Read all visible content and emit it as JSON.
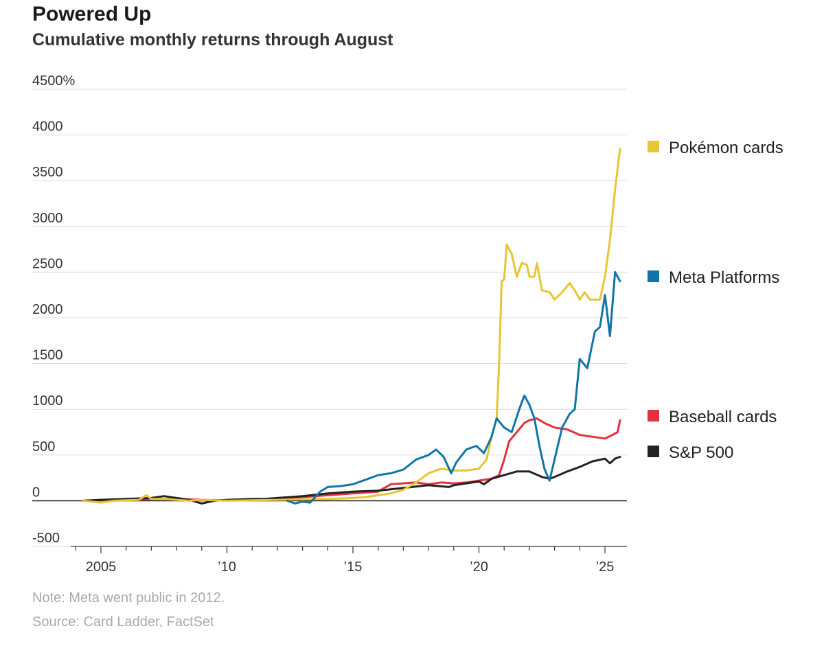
{
  "header": {
    "title": "Powered Up",
    "subtitle": "Cumulative monthly returns through August"
  },
  "footer": {
    "note": "Note: Meta went public in 2012.",
    "source": "Source: Card Ladder, FactSet"
  },
  "chart_data": {
    "type": "line",
    "title": "Powered Up",
    "subtitle": "Cumulative monthly returns through August",
    "xlabel": "",
    "ylabel": "",
    "xlim": [
      2004.0,
      2025.9
    ],
    "ylim": [
      -500,
      4500
    ],
    "y_ticks": [
      {
        "value": 4500,
        "label": "4500%"
      },
      {
        "value": 4000,
        "label": "4000"
      },
      {
        "value": 3500,
        "label": "3500"
      },
      {
        "value": 3000,
        "label": "3000"
      },
      {
        "value": 2500,
        "label": "2500"
      },
      {
        "value": 2000,
        "label": "2000"
      },
      {
        "value": 1500,
        "label": "1500"
      },
      {
        "value": 1000,
        "label": "1000"
      },
      {
        "value": 500,
        "label": "500"
      },
      {
        "value": 0,
        "label": "0"
      },
      {
        "value": -500,
        "label": "-500"
      }
    ],
    "x_ticks": [
      {
        "value": 2005,
        "label": "2005"
      },
      {
        "value": 2010,
        "label": "'10"
      },
      {
        "value": 2015,
        "label": "'15"
      },
      {
        "value": 2020,
        "label": "'20"
      },
      {
        "value": 2025,
        "label": "'25"
      }
    ],
    "grid": "horizontal",
    "legend": "right, at line ends",
    "series": [
      {
        "name": "Pokémon cards",
        "color": "#e8c534",
        "points": [
          [
            2004.3,
            0
          ],
          [
            2005.0,
            -20
          ],
          [
            2005.5,
            0
          ],
          [
            2006.5,
            10
          ],
          [
            2006.8,
            60
          ],
          [
            2007.0,
            20
          ],
          [
            2007.5,
            20
          ],
          [
            2008.0,
            10
          ],
          [
            2008.5,
            0
          ],
          [
            2009.0,
            10
          ],
          [
            2009.5,
            5
          ],
          [
            2010.0,
            0
          ],
          [
            2011.0,
            5
          ],
          [
            2012.0,
            10
          ],
          [
            2013.0,
            15
          ],
          [
            2014.0,
            20
          ],
          [
            2015.0,
            30
          ],
          [
            2015.5,
            40
          ],
          [
            2016.0,
            60
          ],
          [
            2016.5,
            80
          ],
          [
            2017.0,
            120
          ],
          [
            2017.5,
            200
          ],
          [
            2018.0,
            300
          ],
          [
            2018.5,
            350
          ],
          [
            2019.0,
            330
          ],
          [
            2019.5,
            330
          ],
          [
            2020.0,
            350
          ],
          [
            2020.3,
            450
          ],
          [
            2020.5,
            700
          ],
          [
            2020.7,
            900
          ],
          [
            2020.8,
            1500
          ],
          [
            2020.9,
            2400
          ],
          [
            2021.0,
            2420
          ],
          [
            2021.1,
            2800
          ],
          [
            2021.3,
            2700
          ],
          [
            2021.5,
            2450
          ],
          [
            2021.7,
            2600
          ],
          [
            2021.9,
            2580
          ],
          [
            2022.0,
            2450
          ],
          [
            2022.2,
            2450
          ],
          [
            2022.3,
            2600
          ],
          [
            2022.5,
            2300
          ],
          [
            2022.8,
            2280
          ],
          [
            2023.0,
            2200
          ],
          [
            2023.3,
            2280
          ],
          [
            2023.6,
            2380
          ],
          [
            2023.8,
            2300
          ],
          [
            2024.0,
            2200
          ],
          [
            2024.2,
            2280
          ],
          [
            2024.4,
            2200
          ],
          [
            2024.8,
            2200
          ],
          [
            2025.0,
            2450
          ],
          [
            2025.2,
            2850
          ],
          [
            2025.4,
            3400
          ],
          [
            2025.6,
            3850
          ]
        ]
      },
      {
        "name": "Meta Platforms",
        "color": "#0f75a8",
        "points": [
          [
            2012.4,
            0
          ],
          [
            2012.7,
            -30
          ],
          [
            2013.0,
            -10
          ],
          [
            2013.3,
            -20
          ],
          [
            2013.7,
            100
          ],
          [
            2014.0,
            150
          ],
          [
            2014.5,
            160
          ],
          [
            2015.0,
            180
          ],
          [
            2015.5,
            230
          ],
          [
            2016.0,
            280
          ],
          [
            2016.5,
            300
          ],
          [
            2017.0,
            340
          ],
          [
            2017.5,
            450
          ],
          [
            2018.0,
            500
          ],
          [
            2018.3,
            560
          ],
          [
            2018.6,
            480
          ],
          [
            2018.9,
            300
          ],
          [
            2019.1,
            420
          ],
          [
            2019.5,
            560
          ],
          [
            2019.9,
            600
          ],
          [
            2020.2,
            520
          ],
          [
            2020.5,
            700
          ],
          [
            2020.7,
            900
          ],
          [
            2021.0,
            800
          ],
          [
            2021.3,
            750
          ],
          [
            2021.6,
            1000
          ],
          [
            2021.8,
            1150
          ],
          [
            2022.0,
            1050
          ],
          [
            2022.2,
            900
          ],
          [
            2022.4,
            600
          ],
          [
            2022.6,
            350
          ],
          [
            2022.8,
            220
          ],
          [
            2023.0,
            450
          ],
          [
            2023.3,
            800
          ],
          [
            2023.6,
            950
          ],
          [
            2023.8,
            1000
          ],
          [
            2024.0,
            1550
          ],
          [
            2024.3,
            1450
          ],
          [
            2024.6,
            1850
          ],
          [
            2024.8,
            1900
          ],
          [
            2025.0,
            2250
          ],
          [
            2025.2,
            1800
          ],
          [
            2025.4,
            2500
          ],
          [
            2025.6,
            2400
          ]
        ]
      },
      {
        "name": "Baseball cards",
        "color": "#e2323c",
        "points": [
          [
            2004.3,
            0
          ],
          [
            2005.0,
            10
          ],
          [
            2006.0,
            5
          ],
          [
            2007.0,
            20
          ],
          [
            2008.0,
            20
          ],
          [
            2009.0,
            10
          ],
          [
            2010.0,
            5
          ],
          [
            2011.0,
            10
          ],
          [
            2012.0,
            20
          ],
          [
            2013.0,
            40
          ],
          [
            2014.0,
            60
          ],
          [
            2015.0,
            80
          ],
          [
            2016.0,
            100
          ],
          [
            2016.5,
            180
          ],
          [
            2017.0,
            190
          ],
          [
            2017.5,
            200
          ],
          [
            2018.0,
            180
          ],
          [
            2018.5,
            200
          ],
          [
            2019.0,
            190
          ],
          [
            2019.5,
            200
          ],
          [
            2020.0,
            220
          ],
          [
            2020.5,
            240
          ],
          [
            2020.8,
            280
          ],
          [
            2021.0,
            450
          ],
          [
            2021.2,
            650
          ],
          [
            2021.5,
            750
          ],
          [
            2021.8,
            850
          ],
          [
            2022.0,
            880
          ],
          [
            2022.3,
            900
          ],
          [
            2022.6,
            850
          ],
          [
            2023.0,
            800
          ],
          [
            2023.5,
            780
          ],
          [
            2024.0,
            720
          ],
          [
            2024.5,
            700
          ],
          [
            2025.0,
            680
          ],
          [
            2025.3,
            720
          ],
          [
            2025.5,
            750
          ],
          [
            2025.6,
            880
          ]
        ]
      },
      {
        "name": "S&P 500",
        "color": "#222222",
        "points": [
          [
            2004.3,
            0
          ],
          [
            2005.0,
            10
          ],
          [
            2006.0,
            20
          ],
          [
            2007.0,
            30
          ],
          [
            2007.5,
            50
          ],
          [
            2008.0,
            30
          ],
          [
            2008.5,
            10
          ],
          [
            2009.0,
            -30
          ],
          [
            2009.5,
            0
          ],
          [
            2010.0,
            10
          ],
          [
            2011.0,
            20
          ],
          [
            2011.5,
            20
          ],
          [
            2012.0,
            30
          ],
          [
            2013.0,
            50
          ],
          [
            2014.0,
            80
          ],
          [
            2015.0,
            100
          ],
          [
            2016.0,
            110
          ],
          [
            2017.0,
            140
          ],
          [
            2018.0,
            170
          ],
          [
            2018.8,
            150
          ],
          [
            2019.0,
            170
          ],
          [
            2020.0,
            210
          ],
          [
            2020.2,
            180
          ],
          [
            2020.5,
            240
          ],
          [
            2021.0,
            280
          ],
          [
            2021.5,
            320
          ],
          [
            2022.0,
            320
          ],
          [
            2022.5,
            260
          ],
          [
            2022.8,
            240
          ],
          [
            2023.0,
            260
          ],
          [
            2023.5,
            320
          ],
          [
            2024.0,
            370
          ],
          [
            2024.5,
            430
          ],
          [
            2025.0,
            460
          ],
          [
            2025.2,
            410
          ],
          [
            2025.4,
            460
          ],
          [
            2025.6,
            480
          ]
        ]
      }
    ]
  }
}
